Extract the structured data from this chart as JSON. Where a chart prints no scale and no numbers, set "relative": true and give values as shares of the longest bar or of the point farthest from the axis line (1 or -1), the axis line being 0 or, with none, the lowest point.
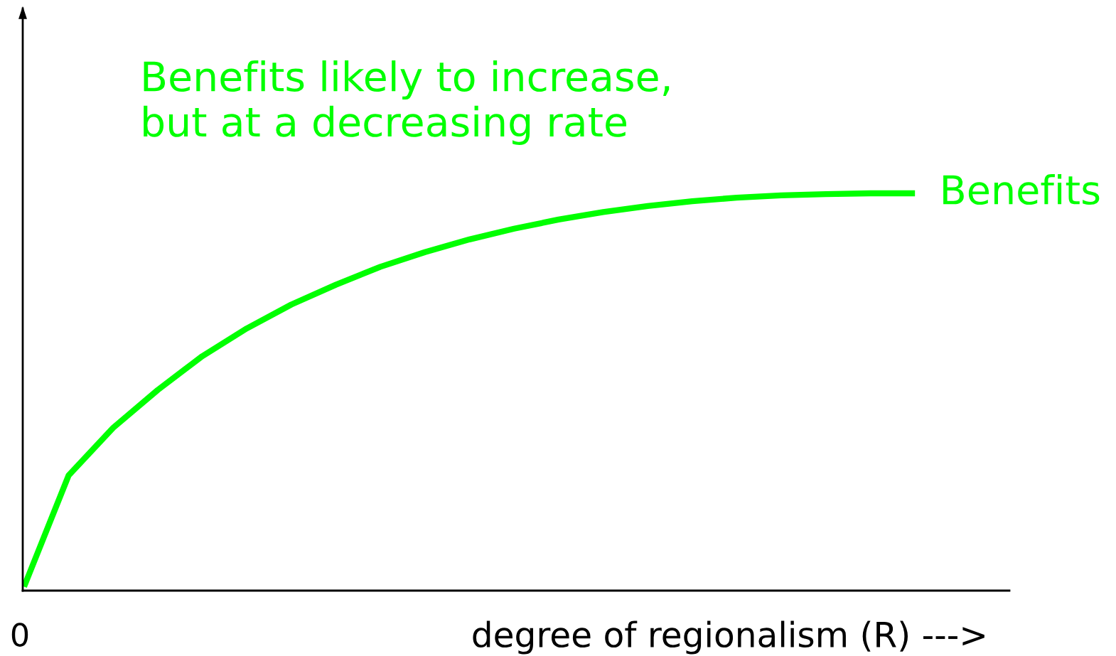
{
  "chart_data": {
    "type": "line",
    "relative": true,
    "xlabel": "degree of regionalism (R) --->",
    "legend": false,
    "marker": "none",
    "line_style": "solid",
    "annotations": [
      "Benefits likely to increase,\nbut at a decreasing rate",
      "0"
    ],
    "categories": [
      null,
      null,
      null,
      null,
      null,
      null,
      null,
      null,
      null,
      null,
      null,
      null,
      null,
      null,
      null,
      null,
      null,
      null,
      null,
      null,
      null
    ],
    "series": [
      {
        "name": "Benefits",
        "color": "#00ff00",
        "values": [
          0.01,
          0.29,
          0.41,
          0.505,
          0.59,
          0.66,
          0.72,
          0.77,
          0.815,
          0.852,
          0.884,
          0.911,
          0.934,
          0.953,
          0.968,
          0.98,
          0.989,
          0.995,
          0.998,
          1,
          1
        ]
      }
    ]
  }
}
